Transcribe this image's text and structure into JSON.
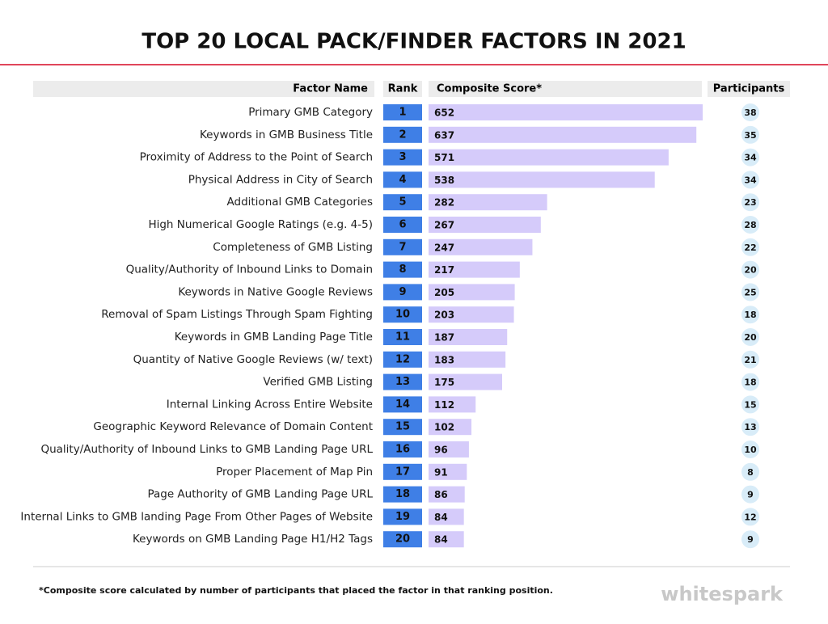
{
  "chart_data": {
    "type": "bar",
    "title": "TOP 20 LOCAL PACK/FINDER FACTORS IN 2021",
    "headers": [
      "Factor Name",
      "Rank",
      "Composite Score*",
      "Participants"
    ],
    "categories": [
      "Primary GMB Category",
      "Keywords in GMB Business Title",
      "Proximity of Address to the Point of Search",
      "Physical Address in City of Search",
      "Additional GMB Categories",
      "High Numerical Google Ratings (e.g. 4-5)",
      "Completeness of GMB Listing",
      "Quality/Authority of Inbound Links to Domain",
      "Keywords in Native Google Reviews",
      "Removal of Spam Listings Through Spam Fighting",
      "Keywords in GMB Landing Page Title",
      "Quantity of Native Google Reviews (w/ text)",
      "Verified GMB Listing",
      "Internal Linking Across Entire Website",
      "Geographic Keyword Relevance of Domain Content",
      "Quality/Authority of Inbound Links to GMB Landing Page URL",
      "Proper Placement of Map Pin",
      "Page Authority of GMB Landing Page URL",
      "Internal Links to GMB landing Page From Other Pages of Website",
      "Keywords on GMB Landing Page H1/H2 Tags"
    ],
    "ranks": [
      1,
      2,
      3,
      4,
      5,
      6,
      7,
      8,
      9,
      10,
      11,
      12,
      13,
      14,
      15,
      16,
      17,
      18,
      19,
      20
    ],
    "values": [
      652,
      637,
      571,
      538,
      282,
      267,
      247,
      217,
      205,
      203,
      187,
      183,
      175,
      112,
      102,
      96,
      91,
      86,
      84,
      84
    ],
    "participants": [
      38,
      35,
      34,
      34,
      23,
      28,
      22,
      20,
      25,
      18,
      20,
      21,
      18,
      15,
      13,
      10,
      8,
      9,
      12,
      9
    ],
    "color": "#d5cbfa",
    "rank_color": "#3f7fe6",
    "footnote": "*Composite score calculated by number of participants that placed the factor in that ranking position.",
    "brand": "whitespark"
  }
}
